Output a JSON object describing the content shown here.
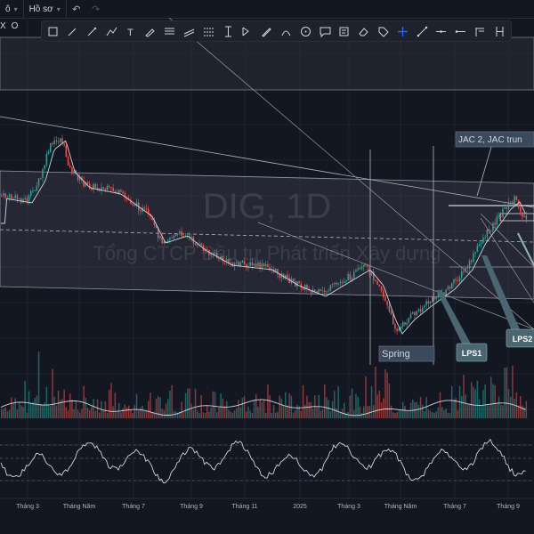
{
  "topbar": {
    "item_left": "ô",
    "profile_label": "Hồ sơ",
    "undo_icon": "undo-icon",
    "redo_icon": "redo-icon"
  },
  "left_bits": {
    "close_glyph": "X",
    "ohlc_prefix": "O"
  },
  "watermark": {
    "symbol": "DIG, 1D",
    "company": "Tổng CTCP Đầu tư Phát triển Xây dựng"
  },
  "annotations": {
    "jac_label": "JAC 2,  JAC trun",
    "spring_label": "Spring",
    "lps1_label": "LPS1",
    "lps2_label": "LPS2"
  },
  "x_axis": {
    "labels": [
      "Tháng 3",
      "Tháng Năm",
      "Tháng 7",
      "Tháng 9",
      "Tháng 11",
      "2025",
      "Tháng 3",
      "Tháng Năm",
      "Tháng 7",
      "Tháng 9"
    ]
  },
  "drawing_tools": [
    "rectangle-select-icon",
    "brush-icon",
    "pen-icon",
    "path-icon",
    "text-icon",
    "highlighter-icon",
    "fib-channel-icon",
    "parallel-channel-icon",
    "regression-icon",
    "text-cursor-icon",
    "long-position-icon",
    "pencil-icon",
    "arc-icon",
    "circle-icon",
    "speech-bubble-icon",
    "note-icon",
    "eraser-icon",
    "tag-icon",
    "crosshair-icon",
    "trendline-icon",
    "horizontal-line-icon",
    "ray-icon",
    "pitchfork-icon",
    "vertical-bracket-icon"
  ],
  "colors": {
    "background": "#131722",
    "candle_up": "#26a69a",
    "candle_down": "#ef5350",
    "annotation_fill": "#3a4a5c",
    "lps_fill": "#4a6670",
    "line": "#b2b5be"
  }
}
